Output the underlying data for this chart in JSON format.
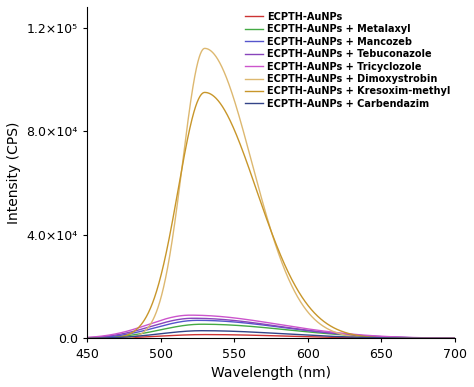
{
  "x_min": 450,
  "x_max": 700,
  "y_min": 0.0,
  "y_max": 128000.0,
  "xlabel": "Wavelength (nm)",
  "ylabel": "Intensity (CPS)",
  "yticks": [
    0.0,
    40000.0,
    80000.0,
    120000.0
  ],
  "background_color": "#ffffff",
  "legend_fontsize": 7.0,
  "axis_fontsize": 10,
  "tick_fontsize": 9,
  "series": [
    {
      "label": "ECPTH-AuNPs",
      "color": "#cc3333",
      "segments": [
        {
          "peak": 530,
          "amp": 1500,
          "sig_l": 30,
          "sig_r": 55
        }
      ]
    },
    {
      "label": "ECPTH-AuNPs + Metalaxyl",
      "color": "#44aa44",
      "segments": [
        {
          "peak": 528,
          "amp": 5500,
          "sig_l": 28,
          "sig_r": 58
        }
      ]
    },
    {
      "label": "ECPTH-AuNPs + Mancozeb",
      "color": "#5555cc",
      "segments": [
        {
          "peak": 525,
          "amp": 7000,
          "sig_l": 28,
          "sig_r": 58
        }
      ]
    },
    {
      "label": "ECPTH-AuNPs + Tebuconazole",
      "color": "#8844bb",
      "segments": [
        {
          "peak": 522,
          "amp": 7800,
          "sig_l": 28,
          "sig_r": 58
        }
      ]
    },
    {
      "label": "ECPTH-AuNPs + Tricyclozole",
      "color": "#cc55cc",
      "segments": [
        {
          "peak": 520,
          "amp": 9000,
          "sig_l": 28,
          "sig_r": 60
        }
      ]
    },
    {
      "label": "ECPTH-AuNPs + Dimoxystrobin",
      "color": "#ddb870",
      "segments": [
        {
          "peak": 530,
          "amp": 112000,
          "sig_l": 15,
          "sig_r": 32
        }
      ]
    },
    {
      "label": "ECPTH-AuNPs + Kresoxim-methyl",
      "color": "#c8962a",
      "segments": [
        {
          "peak": 530,
          "amp": 95000,
          "sig_l": 18,
          "sig_r": 35
        }
      ]
    },
    {
      "label": "ECPTH-AuNPs + Carbendazim",
      "color": "#334488",
      "segments": [
        {
          "peak": 528,
          "amp": 3000,
          "sig_l": 28,
          "sig_r": 55
        }
      ]
    }
  ]
}
